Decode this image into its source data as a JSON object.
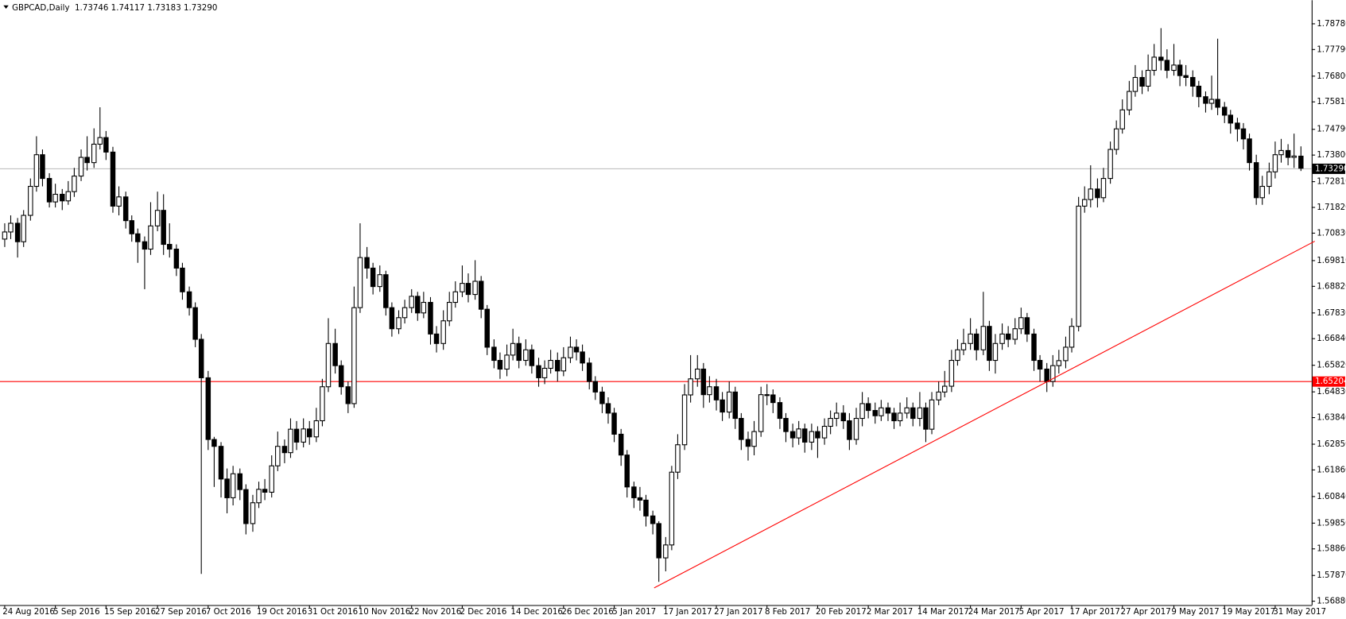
{
  "chart_data": {
    "type": "candlestick",
    "header": "GBPCAD,Daily  1.73746 1.74117 1.73183 1.73290",
    "up_color": "#ffffff",
    "down_color": "#000000",
    "ylim": [
      1.5672,
      1.7966
    ],
    "yticks": [
      {
        "value": 1.5688,
        "label": "1.56880"
      },
      {
        "value": 1.5787,
        "label": "1.57870"
      },
      {
        "value": 1.5886,
        "label": "1.58860"
      },
      {
        "value": 1.5985,
        "label": "1.59850"
      },
      {
        "value": 1.6084,
        "label": "1.60840"
      },
      {
        "value": 1.6186,
        "label": "1.61860"
      },
      {
        "value": 1.6285,
        "label": "1.62850"
      },
      {
        "value": 1.6384,
        "label": "1.63840"
      },
      {
        "value": 1.6483,
        "label": "1.64830"
      },
      {
        "value": 1.6582,
        "label": "1.65820"
      },
      {
        "value": 1.6684,
        "label": "1.66840"
      },
      {
        "value": 1.6783,
        "label": "1.67830"
      },
      {
        "value": 1.6882,
        "label": "1.68820"
      },
      {
        "value": 1.6981,
        "label": "1.69810"
      },
      {
        "value": 1.7083,
        "label": "1.70830"
      },
      {
        "value": 1.7182,
        "label": "1.71820"
      },
      {
        "value": 1.7281,
        "label": "1.72810"
      },
      {
        "value": 1.738,
        "label": "1.73800"
      },
      {
        "value": 1.7479,
        "label": "1.74790"
      },
      {
        "value": 1.7581,
        "label": "1.75810"
      },
      {
        "value": 1.768,
        "label": "1.76800"
      },
      {
        "value": 1.7779,
        "label": "1.77790"
      },
      {
        "value": 1.7878,
        "label": "1.78780"
      }
    ],
    "hlines": [
      {
        "value": 1.65204,
        "label": "1.65204",
        "color": "#ff0000",
        "label_background": "#ff0000"
      },
      {
        "value": 1.7329,
        "label": "1.73290",
        "color": "#c0c0c0",
        "label_background": "#000000"
      }
    ],
    "trendline": {
      "x": [
        102.3,
        206.3
      ],
      "values": [
        1.5737,
        1.7052
      ],
      "color": "#ff0000"
    },
    "categories": [
      "24 Aug 2016",
      null,
      null,
      null,
      null,
      null,
      null,
      null,
      "5 Sep 2016",
      null,
      null,
      null,
      null,
      null,
      null,
      null,
      "15 Sep 2016",
      null,
      null,
      null,
      null,
      null,
      null,
      null,
      "27 Sep 2016",
      null,
      null,
      null,
      null,
      null,
      null,
      null,
      "7 Oct 2016",
      null,
      null,
      null,
      null,
      null,
      null,
      null,
      "19 Oct 2016",
      null,
      null,
      null,
      null,
      null,
      null,
      null,
      "31 Oct 2016",
      null,
      null,
      null,
      null,
      null,
      null,
      null,
      "10 Nov 2016",
      null,
      null,
      null,
      null,
      null,
      null,
      null,
      "22 Nov 2016",
      null,
      null,
      null,
      null,
      null,
      null,
      null,
      "2 Dec 2016",
      null,
      null,
      null,
      null,
      null,
      null,
      null,
      "14 Dec 2016",
      null,
      null,
      null,
      null,
      null,
      null,
      null,
      "26 Dec 2016",
      null,
      null,
      null,
      null,
      null,
      null,
      null,
      "5 Jan 2017",
      null,
      null,
      null,
      null,
      null,
      null,
      null,
      "17 Jan 2017",
      null,
      null,
      null,
      null,
      null,
      null,
      null,
      "27 Jan 2017",
      null,
      null,
      null,
      null,
      null,
      null,
      null,
      "8 Feb 2017",
      null,
      null,
      null,
      null,
      null,
      null,
      null,
      "20 Feb 2017",
      null,
      null,
      null,
      null,
      null,
      null,
      null,
      "2 Mar 2017",
      null,
      null,
      null,
      null,
      null,
      null,
      null,
      "14 Mar 2017",
      null,
      null,
      null,
      null,
      null,
      null,
      null,
      "24 Mar 2017",
      null,
      null,
      null,
      null,
      null,
      null,
      null,
      "5 Apr 2017",
      null,
      null,
      null,
      null,
      null,
      null,
      null,
      "17 Apr 2017",
      null,
      null,
      null,
      null,
      null,
      null,
      null,
      "27 Apr 2017",
      null,
      null,
      null,
      null,
      null,
      null,
      null,
      "9 May 2017",
      null,
      null,
      null,
      null,
      null,
      null,
      null,
      "19 May 2017",
      null,
      null,
      null,
      null,
      null,
      null,
      null,
      "31 May 2017",
      null,
      null,
      null,
      null
    ],
    "open": [
      1.706,
      1.7087,
      1.712,
      1.705,
      1.715,
      1.726,
      1.738,
      1.729,
      1.7201,
      1.723,
      1.7205,
      1.724,
      1.7299,
      1.737,
      1.735,
      1.742,
      1.7445,
      1.739,
      1.7185,
      1.722,
      1.713,
      1.708,
      1.705,
      1.7022,
      1.711,
      1.7169,
      1.704,
      1.7022,
      1.695,
      1.686,
      1.68,
      1.668,
      1.6534,
      1.63,
      1.6274,
      1.615,
      1.6079,
      1.617,
      1.611,
      1.5981,
      1.606,
      1.6111,
      1.61,
      1.62,
      1.6274,
      1.625,
      1.6339,
      1.629,
      1.634,
      1.631,
      1.6371,
      1.65,
      1.6664,
      1.658,
      1.65,
      1.6436,
      1.68,
      1.699,
      1.695,
      1.688,
      1.6925,
      1.68,
      1.672,
      1.6762,
      1.68,
      1.6843,
      1.678,
      1.682,
      1.67,
      1.6664,
      1.675,
      1.682,
      1.686,
      1.6892,
      1.685,
      1.69,
      1.6794,
      1.665,
      1.66,
      1.6567,
      1.662,
      1.6664,
      1.66,
      1.664,
      1.658,
      1.6534,
      1.657,
      1.66,
      1.656,
      1.661,
      1.665,
      1.6632,
      1.659,
      1.652,
      1.648,
      1.6436,
      1.64,
      1.632,
      1.6241,
      1.612,
      1.6079,
      1.607,
      1.601,
      1.5981,
      1.5851,
      1.59,
      1.6176,
      1.628,
      1.6469,
      1.653,
      1.6567,
      1.647,
      1.65,
      1.645,
      1.6404,
      1.648,
      1.638,
      1.63,
      1.6274,
      1.633,
      1.647,
      1.6469,
      1.644,
      1.638,
      1.633,
      1.6306,
      1.634,
      1.629,
      1.633,
      1.6306,
      1.635,
      1.638,
      1.64,
      1.6371,
      1.63,
      1.638,
      1.6436,
      1.641,
      1.639,
      1.642,
      1.64,
      1.6371,
      1.64,
      1.642,
      1.638,
      1.642,
      1.6339,
      1.645,
      1.648,
      1.6502,
      1.66,
      1.664,
      1.6664,
      1.67,
      1.664,
      1.6729,
      1.66,
      1.6664,
      1.67,
      1.668,
      1.672,
      1.6762,
      1.67,
      1.66,
      1.6567,
      1.652,
      1.658,
      1.6599,
      1.665,
      1.6729,
      1.7185,
      1.721,
      1.725,
      1.7217,
      1.729,
      1.74,
      1.7478,
      1.755,
      1.762,
      1.7673,
      1.764,
      1.77,
      1.775,
      1.7738,
      1.77,
      1.772,
      1.768,
      1.7673,
      1.764,
      1.76,
      1.7575,
      1.759,
      1.756,
      1.753,
      1.75,
      1.7478,
      1.744,
      1.735,
      1.7217,
      1.726,
      1.7315,
      1.738,
      1.7396,
      1.737,
      1.73746
    ],
    "high": [
      1.712,
      1.715,
      1.714,
      1.717,
      1.729,
      1.745,
      1.74,
      1.731,
      1.727,
      1.725,
      1.728,
      1.733,
      1.74,
      1.745,
      1.748,
      1.756,
      1.747,
      1.741,
      1.726,
      1.724,
      1.715,
      1.71,
      1.707,
      1.72,
      1.724,
      1.723,
      1.712,
      1.704,
      1.697,
      1.688,
      1.682,
      1.67,
      1.656,
      1.631,
      1.629,
      1.619,
      1.62,
      1.619,
      1.613,
      1.609,
      1.614,
      1.615,
      1.624,
      1.633,
      1.63,
      1.638,
      1.637,
      1.638,
      1.637,
      1.642,
      1.653,
      1.676,
      1.672,
      1.66,
      1.652,
      1.688,
      1.712,
      1.703,
      1.697,
      1.696,
      1.694,
      1.682,
      1.679,
      1.683,
      1.687,
      1.686,
      1.686,
      1.684,
      1.673,
      1.679,
      1.686,
      1.69,
      1.696,
      1.693,
      1.698,
      1.692,
      1.681,
      1.668,
      1.663,
      1.666,
      1.672,
      1.669,
      1.668,
      1.666,
      1.661,
      1.66,
      1.664,
      1.663,
      1.665,
      1.669,
      1.668,
      1.666,
      1.661,
      1.654,
      1.65,
      1.646,
      1.642,
      1.634,
      1.626,
      1.614,
      1.612,
      1.609,
      1.603,
      1.599,
      1.593,
      1.62,
      1.632,
      1.651,
      1.662,
      1.662,
      1.659,
      1.654,
      1.653,
      1.648,
      1.652,
      1.65,
      1.64,
      1.633,
      1.637,
      1.65,
      1.651,
      1.649,
      1.646,
      1.64,
      1.636,
      1.637,
      1.636,
      1.636,
      1.635,
      1.638,
      1.641,
      1.644,
      1.643,
      1.64,
      1.642,
      1.648,
      1.646,
      1.644,
      1.645,
      1.644,
      1.642,
      1.644,
      1.646,
      1.644,
      1.648,
      1.644,
      1.648,
      1.652,
      1.656,
      1.664,
      1.668,
      1.672,
      1.676,
      1.672,
      1.686,
      1.675,
      1.67,
      1.674,
      1.673,
      1.676,
      1.68,
      1.678,
      1.672,
      1.662,
      1.659,
      1.662,
      1.664,
      1.669,
      1.676,
      1.722,
      1.726,
      1.734,
      1.729,
      1.733,
      1.743,
      1.751,
      1.759,
      1.766,
      1.772,
      1.77,
      1.776,
      1.78,
      1.786,
      1.778,
      1.78,
      1.774,
      1.772,
      1.77,
      1.766,
      1.762,
      1.768,
      1.782,
      1.758,
      1.755,
      1.752,
      1.75,
      1.746,
      1.738,
      1.73,
      1.735,
      1.743,
      1.744,
      1.742,
      1.746,
      1.74117
    ],
    "low": [
      1.703,
      1.706,
      1.699,
      1.703,
      1.713,
      1.724,
      1.726,
      1.718,
      1.718,
      1.717,
      1.719,
      1.722,
      1.728,
      1.732,
      1.733,
      1.74,
      1.736,
      1.716,
      1.715,
      1.71,
      1.705,
      1.697,
      1.687,
      1.7,
      1.709,
      1.7,
      1.699,
      1.692,
      1.683,
      1.677,
      1.665,
      1.579,
      1.626,
      1.612,
      1.608,
      1.602,
      1.605,
      1.607,
      1.594,
      1.595,
      1.604,
      1.607,
      1.608,
      1.618,
      1.621,
      1.623,
      1.626,
      1.627,
      1.628,
      1.629,
      1.635,
      1.648,
      1.655,
      1.647,
      1.64,
      1.642,
      1.678,
      1.691,
      1.685,
      1.686,
      1.677,
      1.669,
      1.67,
      1.674,
      1.678,
      1.675,
      1.676,
      1.666,
      1.663,
      1.664,
      1.673,
      1.68,
      1.684,
      1.682,
      1.683,
      1.676,
      1.662,
      1.657,
      1.653,
      1.654,
      1.66,
      1.657,
      1.658,
      1.655,
      1.65,
      1.651,
      1.655,
      1.652,
      1.654,
      1.659,
      1.66,
      1.656,
      1.649,
      1.645,
      1.64,
      1.636,
      1.629,
      1.62,
      1.608,
      1.604,
      1.603,
      1.597,
      1.594,
      1.576,
      1.58,
      1.588,
      1.615,
      1.626,
      1.644,
      1.65,
      1.642,
      1.644,
      1.641,
      1.637,
      1.638,
      1.634,
      1.626,
      1.622,
      1.624,
      1.631,
      1.643,
      1.64,
      1.634,
      1.629,
      1.627,
      1.628,
      1.625,
      1.626,
      1.623,
      1.628,
      1.632,
      1.635,
      1.634,
      1.626,
      1.628,
      1.635,
      1.638,
      1.636,
      1.637,
      1.637,
      1.634,
      1.635,
      1.638,
      1.635,
      1.635,
      1.629,
      1.632,
      1.643,
      1.646,
      1.648,
      1.658,
      1.662,
      1.664,
      1.66,
      1.662,
      1.656,
      1.655,
      1.664,
      1.665,
      1.666,
      1.67,
      1.667,
      1.656,
      1.652,
      1.648,
      1.65,
      1.655,
      1.657,
      1.663,
      1.671,
      1.716,
      1.718,
      1.718,
      1.72,
      1.727,
      1.738,
      1.746,
      1.753,
      1.76,
      1.761,
      1.762,
      1.768,
      1.77,
      1.767,
      1.768,
      1.764,
      1.764,
      1.76,
      1.756,
      1.754,
      1.755,
      1.753,
      1.75,
      1.746,
      1.743,
      1.74,
      1.732,
      1.719,
      1.719,
      1.723,
      1.729,
      1.735,
      1.734,
      1.733,
      1.73183
    ],
    "close": [
      1.7087,
      1.712,
      1.705,
      1.715,
      1.726,
      1.738,
      1.729,
      1.7201,
      1.723,
      1.7205,
      1.724,
      1.7299,
      1.737,
      1.735,
      1.742,
      1.7445,
      1.739,
      1.7185,
      1.722,
      1.713,
      1.708,
      1.705,
      1.7022,
      1.711,
      1.7169,
      1.704,
      1.7022,
      1.695,
      1.686,
      1.68,
      1.668,
      1.6534,
      1.63,
      1.6274,
      1.615,
      1.6079,
      1.617,
      1.611,
      1.5981,
      1.606,
      1.6111,
      1.61,
      1.62,
      1.6274,
      1.625,
      1.6339,
      1.629,
      1.634,
      1.631,
      1.6371,
      1.65,
      1.6664,
      1.658,
      1.65,
      1.6436,
      1.68,
      1.699,
      1.695,
      1.688,
      1.6925,
      1.68,
      1.672,
      1.6762,
      1.68,
      1.6843,
      1.678,
      1.682,
      1.67,
      1.6664,
      1.675,
      1.682,
      1.686,
      1.6892,
      1.685,
      1.69,
      1.6794,
      1.665,
      1.66,
      1.6567,
      1.662,
      1.6664,
      1.66,
      1.664,
      1.658,
      1.6534,
      1.657,
      1.66,
      1.656,
      1.661,
      1.665,
      1.6632,
      1.659,
      1.652,
      1.648,
      1.6436,
      1.64,
      1.632,
      1.6241,
      1.612,
      1.6079,
      1.607,
      1.601,
      1.5981,
      1.5851,
      1.59,
      1.6176,
      1.628,
      1.6469,
      1.653,
      1.6567,
      1.647,
      1.65,
      1.645,
      1.6404,
      1.648,
      1.638,
      1.63,
      1.6274,
      1.633,
      1.647,
      1.6469,
      1.644,
      1.638,
      1.633,
      1.6306,
      1.634,
      1.629,
      1.633,
      1.6306,
      1.635,
      1.638,
      1.64,
      1.6371,
      1.63,
      1.638,
      1.6436,
      1.641,
      1.639,
      1.642,
      1.64,
      1.6371,
      1.64,
      1.642,
      1.638,
      1.642,
      1.6339,
      1.645,
      1.648,
      1.6502,
      1.66,
      1.664,
      1.6664,
      1.67,
      1.664,
      1.6729,
      1.66,
      1.6664,
      1.67,
      1.668,
      1.672,
      1.6762,
      1.67,
      1.66,
      1.6567,
      1.652,
      1.658,
      1.6599,
      1.665,
      1.6729,
      1.7185,
      1.721,
      1.725,
      1.7217,
      1.729,
      1.74,
      1.7478,
      1.755,
      1.762,
      1.7673,
      1.764,
      1.77,
      1.775,
      1.7738,
      1.77,
      1.772,
      1.768,
      1.7673,
      1.764,
      1.76,
      1.7575,
      1.759,
      1.756,
      1.753,
      1.75,
      1.7478,
      1.744,
      1.735,
      1.7217,
      1.726,
      1.7315,
      1.738,
      1.7396,
      1.737,
      1.7375,
      1.7329
    ]
  }
}
